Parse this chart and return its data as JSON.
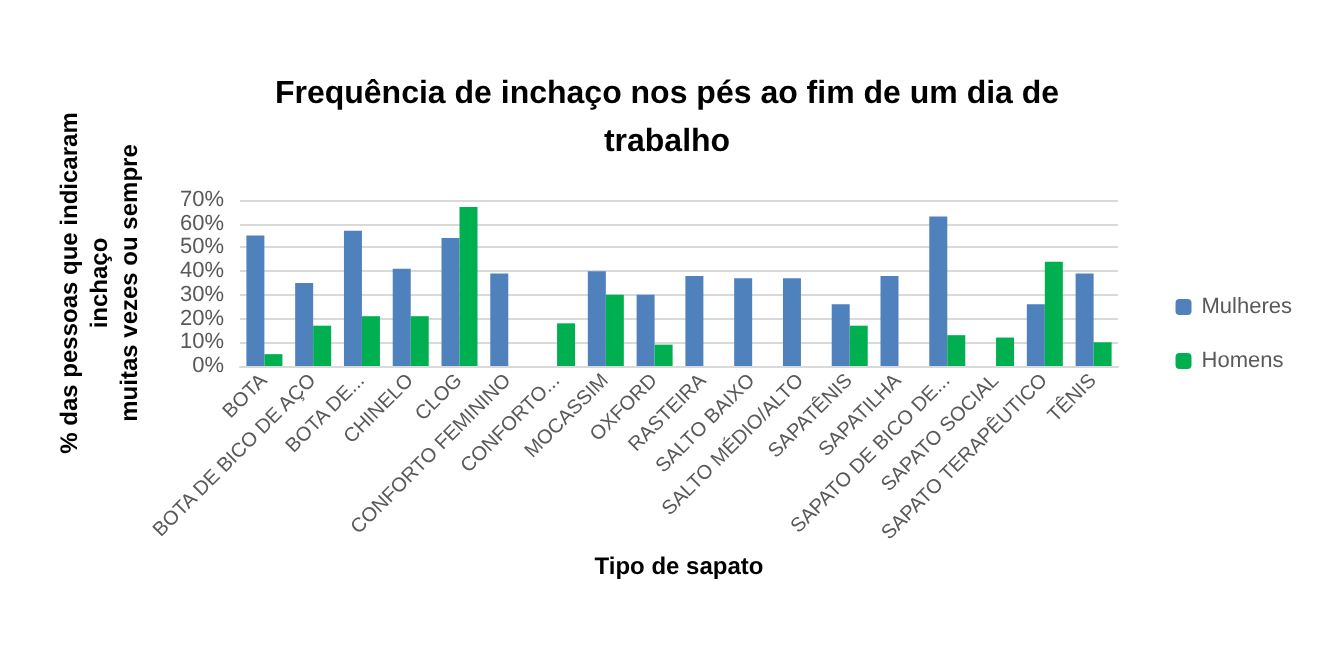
{
  "chart_data": {
    "type": "bar",
    "title": "Frequência de inchaço nos pés ao fim de um dia de\ntrabalho",
    "xlabel": "Tipo de sapato",
    "ylabel": "% das pessoas que indicaram\ninchaço\nmuitas vezes ou sempre",
    "categories": [
      "BOTA",
      "BOTA DE BICO DE AÇO",
      "BOTA DE...",
      "CHINELO",
      "CLOG",
      "CONFORTO FEMININO",
      "CONFORTO...",
      "MOCASSIM",
      "OXFORD",
      "RASTEIRA",
      "SALTO BAIXO",
      "SALTO MÉDIO/ALTO",
      "SAPATÊNIS",
      "SAPATILHA",
      "SAPATO DE BICO DE...",
      "SAPATO SOCIAL",
      "SAPATO TERAPÊUTICO",
      "TÊNIS"
    ],
    "series": [
      {
        "name": "Mulheres",
        "color": "#4f81bd",
        "values": [
          55,
          35,
          57,
          41,
          54,
          39,
          null,
          40,
          30,
          38,
          37,
          37,
          26,
          38,
          63,
          null,
          26,
          39
        ]
      },
      {
        "name": "Homens",
        "color": "#00b050",
        "values": [
          5,
          17,
          21,
          21,
          67,
          null,
          18,
          30,
          9,
          null,
          null,
          null,
          17,
          null,
          13,
          12,
          44,
          10
        ]
      }
    ],
    "ylim": [
      0,
      70
    ],
    "yticks": [
      {
        "value": 0,
        "label": "0%"
      },
      {
        "value": 10,
        "label": "10%"
      },
      {
        "value": 20,
        "label": "20%"
      },
      {
        "value": 30,
        "label": "30%"
      },
      {
        "value": 40,
        "label": "40%"
      },
      {
        "value": 50,
        "label": "50%"
      },
      {
        "value": 60,
        "label": "60%"
      },
      {
        "value": 70,
        "label": "70%"
      }
    ],
    "grid": "y",
    "legend": "right"
  }
}
